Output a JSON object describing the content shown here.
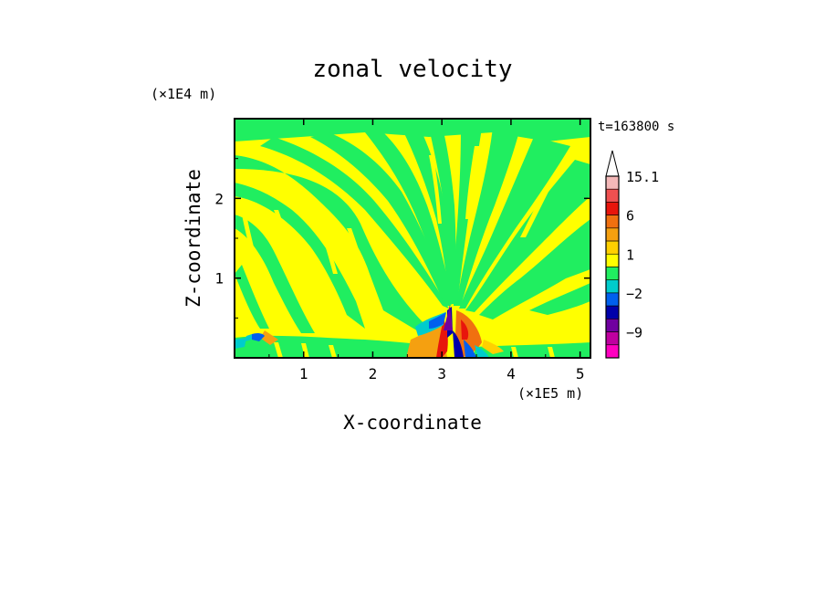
{
  "chart_data": {
    "type": "heatmap",
    "title": "zonal velocity",
    "xlabel": "X-coordinate",
    "ylabel": "Z-coordinate",
    "x_unit": "(×1E5 m)",
    "y_unit": "(×1E4 m)",
    "time_label": "t=163800 s",
    "xlim": [
      0,
      5.15
    ],
    "ylim": [
      0,
      3.0
    ],
    "x_ticks": [
      1,
      2,
      3,
      4,
      5
    ],
    "x_tick_labels": [
      "1",
      "2",
      "3",
      "4",
      "5"
    ],
    "y_ticks": [
      1,
      2
    ],
    "y_tick_labels": [
      "1",
      "2"
    ],
    "colorbar": {
      "labels": [
        {
          "value": 15.1,
          "text": "15.1"
        },
        {
          "value": 6,
          "text": "6"
        },
        {
          "value": 1,
          "text": "1"
        },
        {
          "value": -2,
          "text": "−2"
        },
        {
          "value": -9,
          "text": "−9"
        }
      ],
      "levels_top_to_bottom": [
        {
          "color": "#ffffff",
          "range": "> 15.1"
        },
        {
          "color": "#f4b8b8",
          "range": "12 to 15.1"
        },
        {
          "color": "#ef5050",
          "range": "9 to 12"
        },
        {
          "color": "#e8150c",
          "range": "6 to 9"
        },
        {
          "color": "#f07010",
          "range": "3 to 6"
        },
        {
          "color": "#f5a010",
          "range": "2 to 3"
        },
        {
          "color": "#ffd000",
          "range": "1 to 2"
        },
        {
          "color": "#ffff00",
          "range": "0 to 1"
        },
        {
          "color": "#20ee60",
          "range": "-1 to 0"
        },
        {
          "color": "#00cccc",
          "range": "-2 to -1"
        },
        {
          "color": "#0060ee",
          "range": "-4 to -2"
        },
        {
          "color": "#0000aa",
          "range": "-6 to -4"
        },
        {
          "color": "#7000a0",
          "range": "-9 to -6"
        },
        {
          "color": "#c000a0",
          "range": "-12 to -9"
        },
        {
          "color": "#ff00c0",
          "range": "< -12"
        }
      ]
    },
    "field_description": "Alternating yellow (0 to 1) and green (-1 to 0) radiating bands fanning upward from a mountain-like source near x=3.1; strong red/blue anomalies near the surface at x≈3.0–3.4; small blue/orange feature near x≈0.35."
  }
}
